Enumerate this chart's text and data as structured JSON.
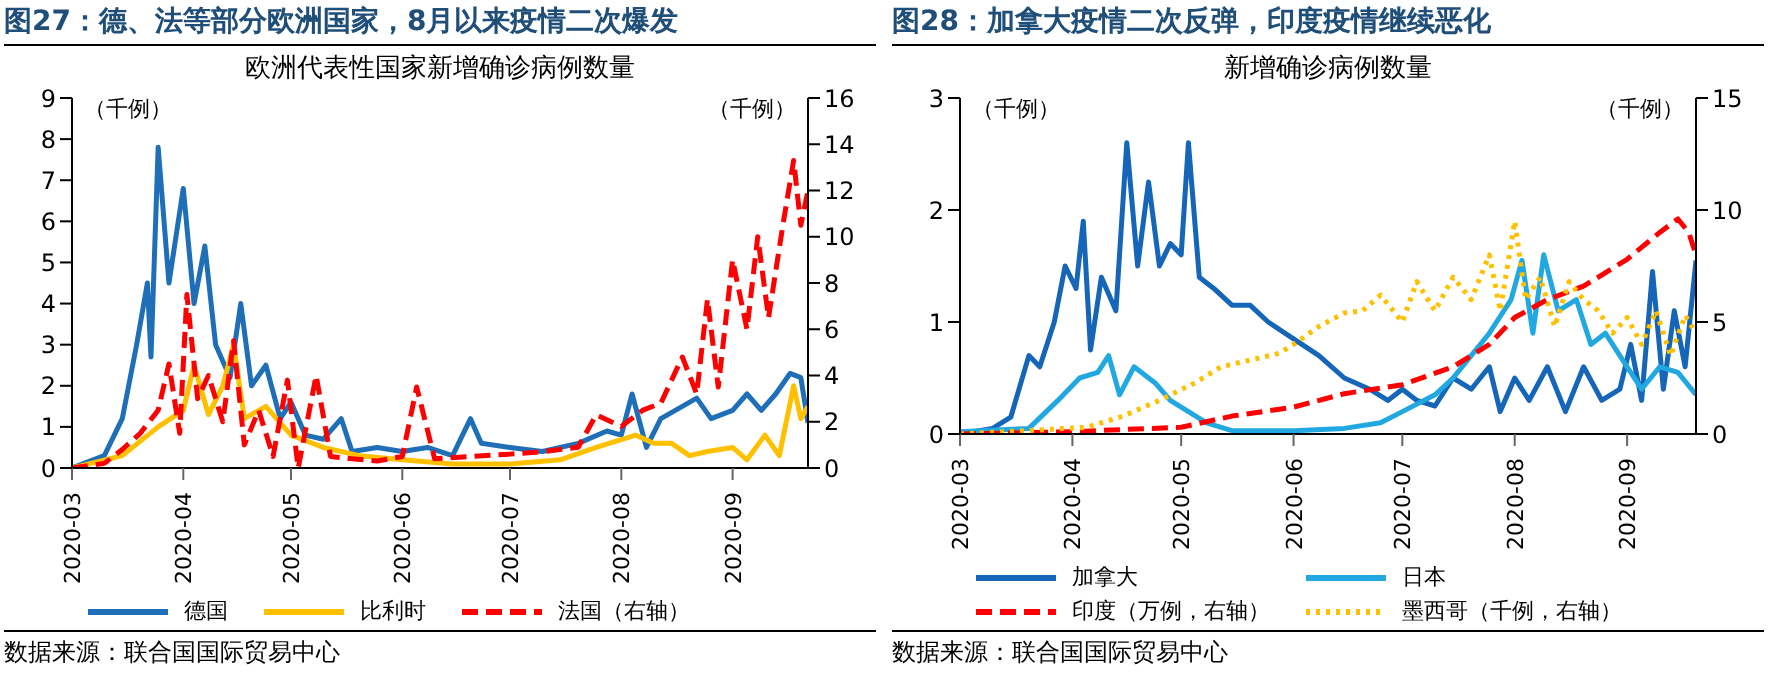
{
  "chart_data": [
    {
      "type": "line",
      "title": "图27：德、法等部分欧洲国家，8月以来疫情二次爆发",
      "subtitle": "欧洲代表性国家新增确诊病例数量",
      "ylabel": "（千例）",
      "y2label": "（千例）",
      "xlim": [
        "2020-03-01",
        "2020-09-22"
      ],
      "xticks": [
        "2020-03",
        "2020-04",
        "2020-05",
        "2020-06",
        "2020-07",
        "2020-08",
        "2020-09"
      ],
      "ylim": [
        0,
        9
      ],
      "yticks": [
        0,
        1,
        2,
        3,
        4,
        5,
        6,
        7,
        8,
        9
      ],
      "y2lim": [
        0,
        16
      ],
      "y2ticks": [
        0,
        2,
        4,
        6,
        8,
        10,
        12,
        14,
        16
      ],
      "legend": "bottom",
      "annotations": [
        "数据来源：联合国国际贸易中心"
      ],
      "series": [
        {
          "name": "德国",
          "color": "#1f6fb8",
          "line_style": "solid",
          "x": [
            "2020-03-01",
            "2020-03-10",
            "2020-03-15",
            "2020-03-19",
            "2020-03-22",
            "2020-03-23",
            "2020-03-25",
            "2020-03-28",
            "2020-04-01",
            "2020-04-04",
            "2020-04-07",
            "2020-04-10",
            "2020-04-14",
            "2020-04-17",
            "2020-04-20",
            "2020-04-24",
            "2020-04-28",
            "2020-05-01",
            "2020-05-05",
            "2020-05-10",
            "2020-05-15",
            "2020-05-18",
            "2020-05-25",
            "2020-06-01",
            "2020-06-08",
            "2020-06-15",
            "2020-06-20",
            "2020-06-23",
            "2020-07-01",
            "2020-07-10",
            "2020-07-20",
            "2020-07-28",
            "2020-08-01",
            "2020-08-04",
            "2020-08-08",
            "2020-08-12",
            "2020-08-18",
            "2020-08-22",
            "2020-08-26",
            "2020-09-01",
            "2020-09-05",
            "2020-09-09",
            "2020-09-13",
            "2020-09-17",
            "2020-09-20",
            "2020-09-22"
          ],
          "values": [
            0,
            0.3,
            1.2,
            3,
            4.5,
            2.7,
            7.8,
            4.5,
            6.8,
            4,
            5.4,
            3,
            2.2,
            4,
            2,
            2.5,
            1.2,
            1.6,
            0.8,
            0.7,
            1.2,
            0.4,
            0.5,
            0.4,
            0.5,
            0.3,
            1.2,
            0.6,
            0.5,
            0.4,
            0.6,
            0.9,
            0.8,
            1.8,
            0.5,
            1.2,
            1.5,
            1.7,
            1.2,
            1.4,
            1.8,
            1.4,
            1.8,
            2.3,
            2.2,
            1.1
          ]
        },
        {
          "name": "比利时",
          "color": "#ffc000",
          "line_style": "solid",
          "x": [
            "2020-03-01",
            "2020-03-15",
            "2020-03-25",
            "2020-04-01",
            "2020-04-04",
            "2020-04-08",
            "2020-04-12",
            "2020-04-15",
            "2020-04-18",
            "2020-04-24",
            "2020-05-01",
            "2020-05-10",
            "2020-05-20",
            "2020-06-01",
            "2020-06-15",
            "2020-07-01",
            "2020-07-15",
            "2020-07-25",
            "2020-08-05",
            "2020-08-10",
            "2020-08-15",
            "2020-08-20",
            "2020-08-25",
            "2020-09-01",
            "2020-09-05",
            "2020-09-10",
            "2020-09-14",
            "2020-09-18",
            "2020-09-20",
            "2020-09-22"
          ],
          "values": [
            0,
            0.3,
            1.0,
            1.4,
            2.5,
            1.3,
            2.0,
            3.0,
            1.2,
            1.5,
            0.8,
            0.5,
            0.3,
            0.2,
            0.1,
            0.1,
            0.2,
            0.5,
            0.8,
            0.6,
            0.6,
            0.3,
            0.4,
            0.5,
            0.2,
            0.8,
            0.3,
            2.0,
            1.2,
            1.5
          ]
        },
        {
          "name": "法国（右轴）",
          "color": "#ff0000",
          "line_style": "dashed",
          "axis": "y2",
          "x": [
            "2020-03-01",
            "2020-03-10",
            "2020-03-15",
            "2020-03-20",
            "2020-03-25",
            "2020-03-28",
            "2020-03-31",
            "2020-04-02",
            "2020-04-05",
            "2020-04-08",
            "2020-04-12",
            "2020-04-15",
            "2020-04-18",
            "2020-04-22",
            "2020-04-26",
            "2020-04-30",
            "2020-05-03",
            "2020-05-08",
            "2020-05-12",
            "2020-05-18",
            "2020-05-25",
            "2020-06-01",
            "2020-06-05",
            "2020-06-10",
            "2020-06-20",
            "2020-07-01",
            "2020-07-10",
            "2020-07-20",
            "2020-07-25",
            "2020-08-01",
            "2020-08-07",
            "2020-08-12",
            "2020-08-18",
            "2020-08-22",
            "2020-08-25",
            "2020-08-28",
            "2020-09-01",
            "2020-09-05",
            "2020-09-08",
            "2020-09-11",
            "2020-09-15",
            "2020-09-18",
            "2020-09-20",
            "2020-09-22"
          ],
          "values": [
            0,
            0.2,
            0.8,
            1.5,
            2.5,
            4.5,
            1.5,
            7.5,
            3,
            4,
            2,
            5.5,
            1,
            2.5,
            0.5,
            3.8,
            0,
            4,
            0.5,
            0.4,
            0.3,
            0.5,
            3.5,
            0.4,
            0.5,
            0.6,
            0.7,
            0.9,
            2.3,
            1.8,
            2.5,
            2.8,
            4.8,
            3.2,
            7.3,
            3.5,
            9,
            6,
            10,
            6.5,
            10.5,
            13.3,
            10.5,
            12
          ]
        }
      ]
    },
    {
      "type": "line",
      "title": "图28：加拿大疫情二次反弹，印度疫情继续恶化",
      "subtitle": "新增确诊病例数量",
      "ylabel": "（千例）",
      "y2label": "（千例）",
      "xlim": [
        "2020-03-01",
        "2020-09-20"
      ],
      "xticks": [
        "2020-03",
        "2020-04",
        "2020-05",
        "2020-06",
        "2020-07",
        "2020-08",
        "2020-09"
      ],
      "ylim": [
        0,
        3
      ],
      "yticks": [
        0,
        1,
        2,
        3
      ],
      "y2lim": [
        0,
        15
      ],
      "y2ticks": [
        0,
        5,
        10,
        15
      ],
      "legend": "bottom",
      "annotations": [
        "数据来源：联合国国际贸易中心"
      ],
      "series": [
        {
          "name": "加拿大",
          "color": "#1565b8",
          "line_style": "solid",
          "x": [
            "2020-03-01",
            "2020-03-10",
            "2020-03-15",
            "2020-03-20",
            "2020-03-23",
            "2020-03-27",
            "2020-03-30",
            "2020-04-02",
            "2020-04-04",
            "2020-04-06",
            "2020-04-09",
            "2020-04-13",
            "2020-04-16",
            "2020-04-19",
            "2020-04-22",
            "2020-04-25",
            "2020-04-28",
            "2020-05-01",
            "2020-05-03",
            "2020-05-06",
            "2020-05-10",
            "2020-05-15",
            "2020-05-20",
            "2020-05-25",
            "2020-06-01",
            "2020-06-08",
            "2020-06-15",
            "2020-06-22",
            "2020-06-27",
            "2020-07-01",
            "2020-07-05",
            "2020-07-10",
            "2020-07-15",
            "2020-07-20",
            "2020-07-25",
            "2020-07-28",
            "2020-08-01",
            "2020-08-05",
            "2020-08-10",
            "2020-08-15",
            "2020-08-20",
            "2020-08-25",
            "2020-08-30",
            "2020-09-02",
            "2020-09-05",
            "2020-09-08",
            "2020-09-11",
            "2020-09-14",
            "2020-09-17",
            "2020-09-20"
          ],
          "values": [
            0,
            0.05,
            0.15,
            0.7,
            0.6,
            1.0,
            1.5,
            1.3,
            1.9,
            0.75,
            1.4,
            1.1,
            2.6,
            1.5,
            2.25,
            1.5,
            1.7,
            1.6,
            2.6,
            1.4,
            1.3,
            1.15,
            1.15,
            1.0,
            0.85,
            0.7,
            0.5,
            0.4,
            0.3,
            0.4,
            0.3,
            0.25,
            0.5,
            0.4,
            0.6,
            0.2,
            0.5,
            0.3,
            0.6,
            0.2,
            0.6,
            0.3,
            0.4,
            0.8,
            0.3,
            1.45,
            0.4,
            1.1,
            0.6,
            1.55
          ]
        },
        {
          "name": "日本",
          "color": "#21a8e0",
          "line_style": "solid",
          "x": [
            "2020-03-01",
            "2020-03-20",
            "2020-03-28",
            "2020-04-03",
            "2020-04-08",
            "2020-04-11",
            "2020-04-14",
            "2020-04-18",
            "2020-04-24",
            "2020-04-28",
            "2020-05-03",
            "2020-05-08",
            "2020-05-15",
            "2020-06-01",
            "2020-06-15",
            "2020-06-25",
            "2020-07-01",
            "2020-07-10",
            "2020-07-15",
            "2020-07-20",
            "2020-07-25",
            "2020-07-31",
            "2020-08-03",
            "2020-08-06",
            "2020-08-09",
            "2020-08-13",
            "2020-08-18",
            "2020-08-22",
            "2020-08-26",
            "2020-09-01",
            "2020-09-05",
            "2020-09-10",
            "2020-09-15",
            "2020-09-20"
          ],
          "values": [
            0.02,
            0.05,
            0.3,
            0.5,
            0.55,
            0.7,
            0.35,
            0.6,
            0.45,
            0.3,
            0.2,
            0.1,
            0.03,
            0.03,
            0.05,
            0.1,
            0.2,
            0.35,
            0.5,
            0.7,
            0.9,
            1.2,
            1.55,
            0.9,
            1.6,
            1.1,
            1.2,
            0.8,
            0.9,
            0.6,
            0.4,
            0.6,
            0.55,
            0.35
          ]
        },
        {
          "name": "印度（万例，右轴）",
          "color": "#ff0000",
          "line_style": "dashed",
          "axis": "y2",
          "x": [
            "2020-03-01",
            "2020-04-01",
            "2020-04-15",
            "2020-05-01",
            "2020-05-15",
            "2020-06-01",
            "2020-06-15",
            "2020-07-01",
            "2020-07-15",
            "2020-07-25",
            "2020-08-01",
            "2020-08-10",
            "2020-08-20",
            "2020-09-01",
            "2020-09-10",
            "2020-09-15",
            "2020-09-18",
            "2020-09-20"
          ],
          "values": [
            0,
            0.1,
            0.2,
            0.3,
            0.8,
            1.2,
            1.8,
            2.2,
            3.0,
            4.0,
            5.2,
            6.0,
            6.6,
            7.8,
            9.0,
            9.6,
            9.0,
            8.0
          ]
        },
        {
          "name": "墨西哥（千例，右轴）",
          "color": "#ffc000",
          "line_style": "dotted",
          "axis": "y2",
          "x": [
            "2020-03-01",
            "2020-03-25",
            "2020-04-05",
            "2020-04-15",
            "2020-04-25",
            "2020-05-05",
            "2020-05-12",
            "2020-05-20",
            "2020-05-28",
            "2020-06-01",
            "2020-06-08",
            "2020-06-15",
            "2020-06-20",
            "2020-06-25",
            "2020-07-01",
            "2020-07-05",
            "2020-07-10",
            "2020-07-15",
            "2020-07-20",
            "2020-07-25",
            "2020-07-28",
            "2020-08-01",
            "2020-08-04",
            "2020-08-08",
            "2020-08-12",
            "2020-08-16",
            "2020-08-20",
            "2020-08-24",
            "2020-08-28",
            "2020-09-01",
            "2020-09-05",
            "2020-09-09",
            "2020-09-13",
            "2020-09-17",
            "2020-09-20"
          ],
          "values": [
            0,
            0.2,
            0.3,
            0.8,
            1.5,
            2.3,
            3.0,
            3.3,
            3.6,
            4.0,
            4.8,
            5.4,
            5.5,
            6.2,
            5.0,
            6.8,
            5.5,
            7.0,
            6.0,
            8.0,
            5.5,
            9.5,
            6.0,
            7.0,
            4.8,
            6.8,
            6.0,
            5.5,
            4.5,
            5.2,
            4.0,
            5.5,
            3.5,
            5.3,
            4.5
          ]
        }
      ]
    }
  ]
}
